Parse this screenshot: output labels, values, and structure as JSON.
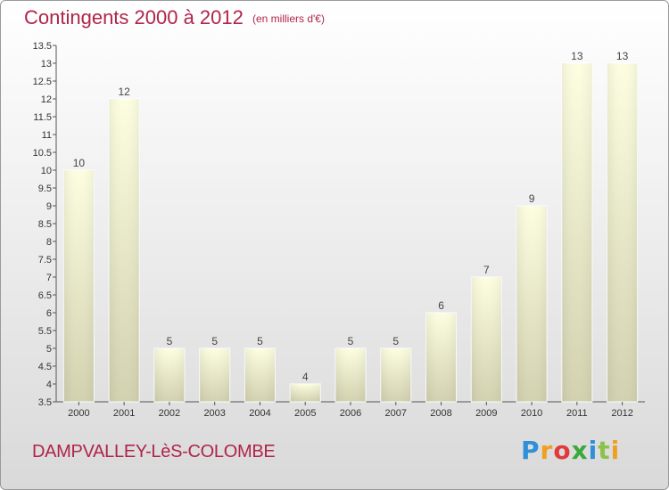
{
  "header": {
    "title": "Contingents 2000 à 2012",
    "subtitle": "(en milliers d'€)"
  },
  "footer": {
    "commune": "DAMPVALLEY-LèS-COLOMBE",
    "logo_text": "Proxiti"
  },
  "colors": {
    "title": "#b0244a",
    "bar_top": "#fdfde0",
    "bar_bottom": "#d2d2b0",
    "axis": "#555555"
  },
  "chart_data": {
    "type": "bar",
    "title": "Contingents 2000 à 2012",
    "subtitle": "(en milliers d'€)",
    "categories": [
      "2000",
      "2001",
      "2002",
      "2003",
      "2004",
      "2005",
      "2006",
      "2007",
      "2008",
      "2009",
      "2010",
      "2011",
      "2012"
    ],
    "values": [
      10,
      12,
      5,
      5,
      5,
      4,
      5,
      5,
      6,
      7,
      9,
      13,
      13
    ],
    "value_labels": [
      "10",
      "12",
      "5",
      "5",
      "5",
      "4",
      "5",
      "5",
      "6",
      "7",
      "9",
      "13",
      "13"
    ],
    "ylim": [
      3.5,
      13.5
    ],
    "yticks": [
      3.5,
      4,
      4.5,
      5,
      5.5,
      6,
      6.5,
      7,
      7.5,
      8,
      8.5,
      9,
      9.5,
      10,
      10.5,
      11,
      11.5,
      12,
      12.5,
      13,
      13.5
    ],
    "ytick_labels": [
      "3.5",
      "4",
      "4.5",
      "5",
      "5.5",
      "6",
      "6.5",
      "7",
      "7.5",
      "8",
      "8.5",
      "9",
      "9.5",
      "10",
      "10.5",
      "11",
      "11.5",
      "12",
      "12.5",
      "13",
      "13.5"
    ],
    "grid": false,
    "legend": "none"
  }
}
